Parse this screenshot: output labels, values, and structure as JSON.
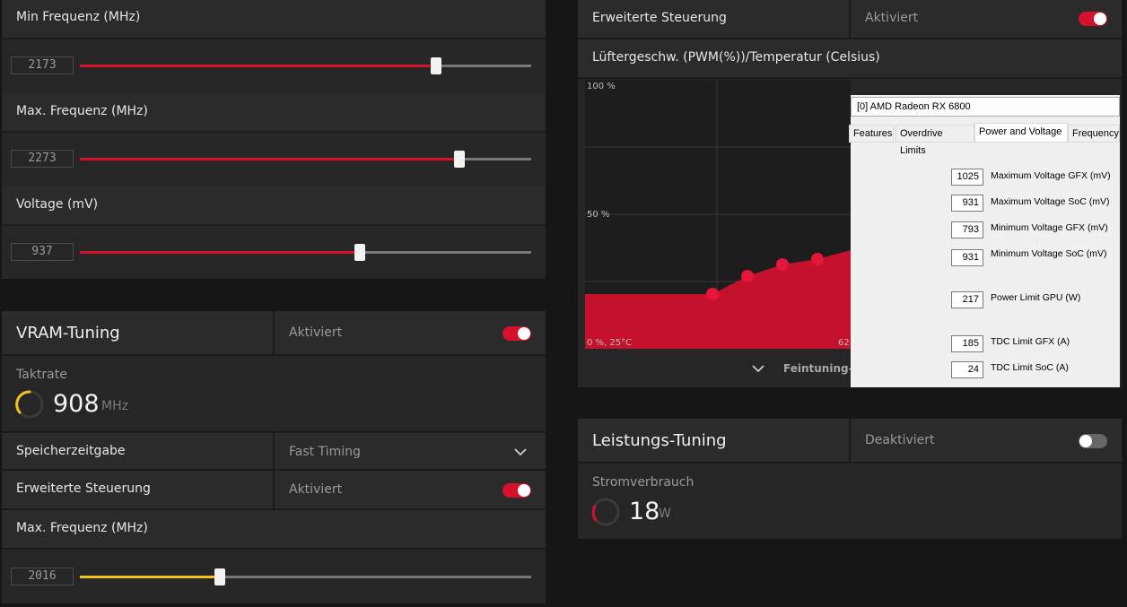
{
  "left_top": {
    "min_freq": {
      "label": "Min Frequenz (MHz)",
      "value": "2173",
      "fraction": 0.79
    },
    "max_freq": {
      "label": "Max. Frequenz (MHz)",
      "value": "2273",
      "fraction": 0.84
    },
    "voltage": {
      "label": "Voltage (mV)",
      "value": "937",
      "fraction": 0.62
    }
  },
  "vram": {
    "title": "VRAM-Tuning",
    "status": "Aktiviert",
    "clock_label": "Taktrate",
    "clock_value": "908",
    "clock_unit": "MHz",
    "timing_label": "Speicherzeitgabe",
    "timing_value": "Fast Timing",
    "adv_label": "Erweiterte Steuerung",
    "adv_status": "Aktiviert",
    "max_freq": {
      "label": "Max. Frequenz (MHz)",
      "value": "2016",
      "fraction": 0.31
    }
  },
  "fan": {
    "adv_label": "Erweiterte Steuerung",
    "adv_status": "Aktiviert",
    "chart_title": "Lüftergeschw. (PWM(%))/Temperatur (Celsius)",
    "y_top": "100 %",
    "y_mid": "50 %",
    "origin": "0 %, 25°C",
    "x_partial": "62",
    "fine_tuning": "Feintuning-S"
  },
  "power": {
    "title": "Leistungs-Tuning",
    "status": "Deaktiviert",
    "usage_label": "Stromverbrauch",
    "usage_value": "18",
    "usage_unit": "W"
  },
  "overlay": {
    "title": "[0] AMD Radeon RX 6800",
    "tabs": [
      "Features",
      "Overdrive Limits",
      "Power and Voltage",
      "Frequency"
    ],
    "active_tab": "Power and Voltage",
    "fields": [
      {
        "value": "1025",
        "label": "Maximum Voltage GFX (mV)"
      },
      {
        "value": "931",
        "label": "Maximum Voltage SoC (mV)"
      },
      {
        "value": "793",
        "label": "Minimum Voltage GFX (mV)"
      },
      {
        "value": "931",
        "label": "Minimum Voltage SoC (mV)"
      },
      {
        "value": "217",
        "label": "Power Limit GPU (W)"
      },
      {
        "value": "185",
        "label": "TDC Limit GFX (A)"
      },
      {
        "value": "24",
        "label": "TDC Limit SoC (A)"
      }
    ]
  },
  "colors": {
    "accent": "#d5112d",
    "vram_accent": "#f4c21c",
    "toggle_off": "#676767"
  }
}
